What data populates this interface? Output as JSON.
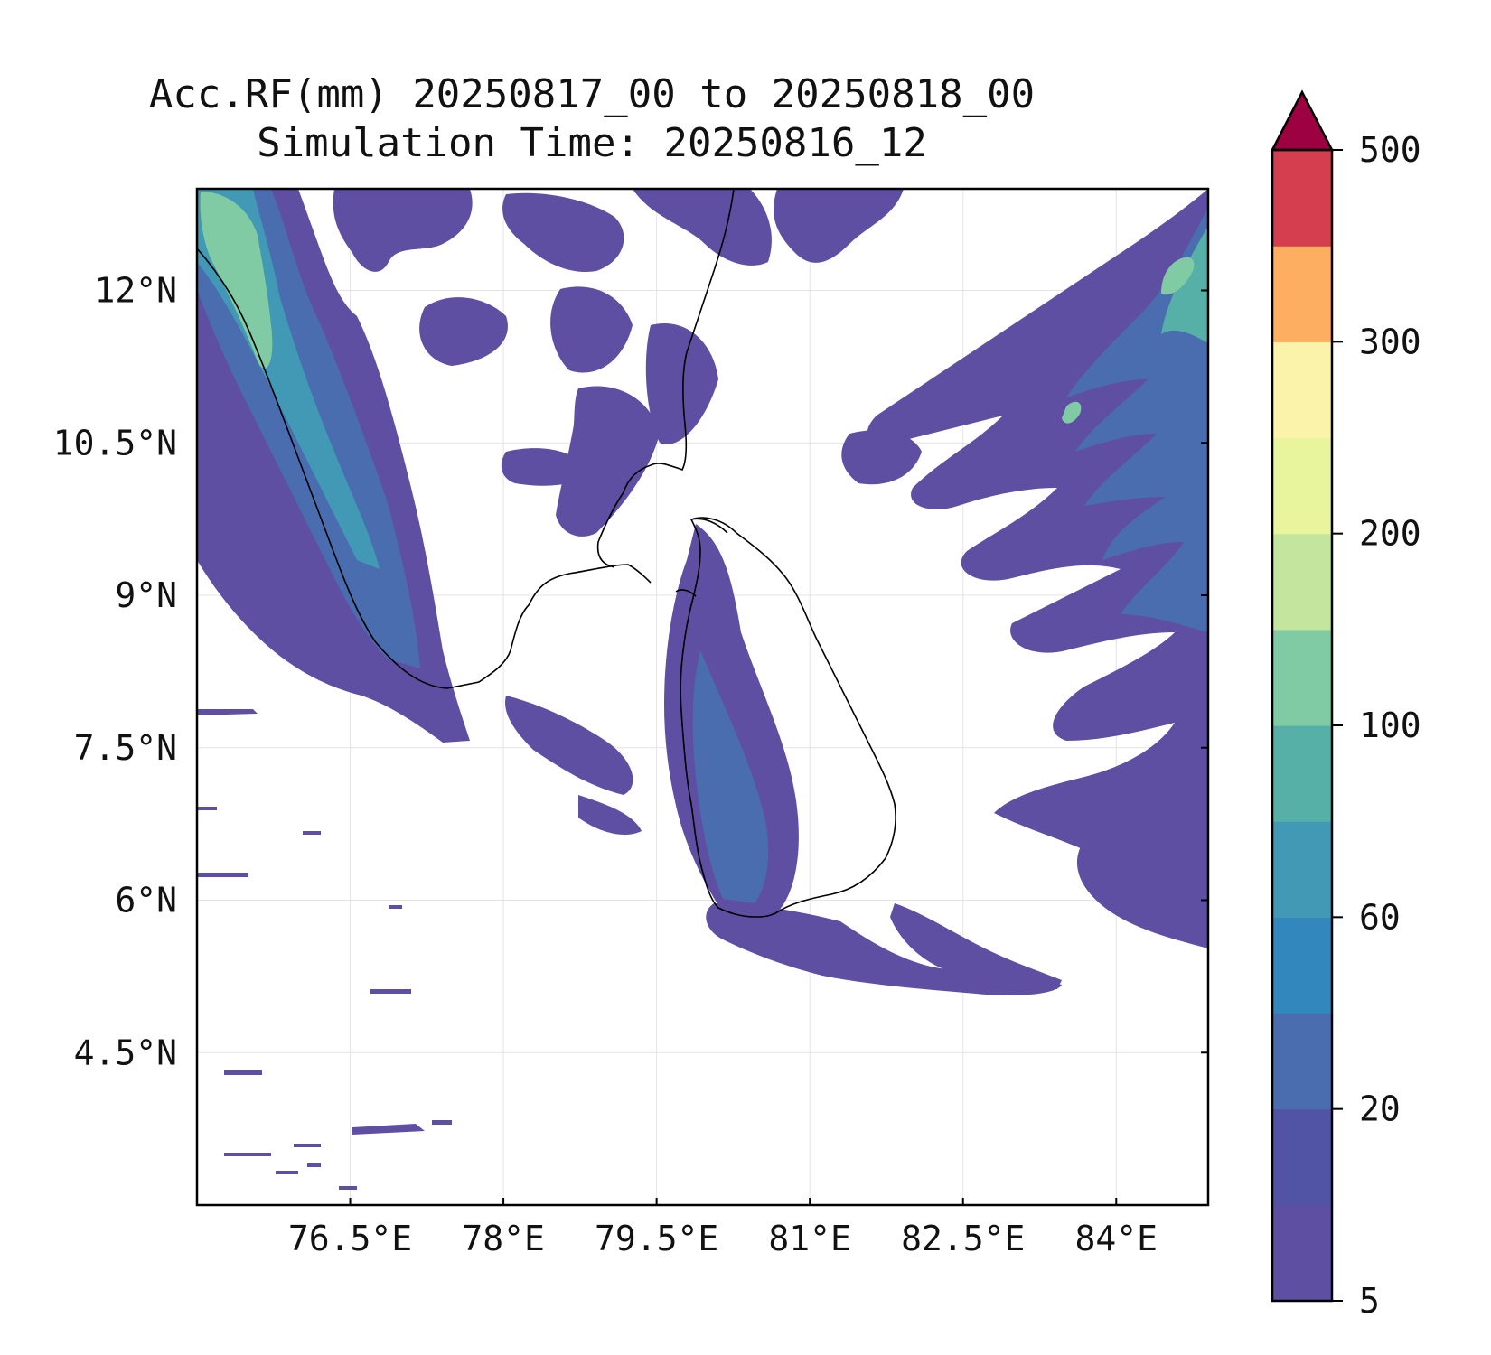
{
  "title": {
    "line1": "Acc.RF(mm) 20250817_00 to 20250818_00",
    "line2": "Simulation Time: 20250816_12"
  },
  "map": {
    "region": "Sri Lanka and southern India",
    "lon_range": [
      75.0,
      84.9
    ],
    "lat_range": [
      3.0,
      13.0
    ],
    "lon_ticks": [
      {
        "value": 76.5,
        "label": "76.5°E"
      },
      {
        "value": 78.0,
        "label": "78°E"
      },
      {
        "value": 79.5,
        "label": "79.5°E"
      },
      {
        "value": 81.0,
        "label": "81°E"
      },
      {
        "value": 82.5,
        "label": "82.5°E"
      },
      {
        "value": 84.0,
        "label": "84°E"
      }
    ],
    "lat_ticks": [
      {
        "value": 12.0,
        "label": "12°N"
      },
      {
        "value": 10.5,
        "label": "10.5°N"
      },
      {
        "value": 9.0,
        "label": "9°N"
      },
      {
        "value": 7.5,
        "label": "7.5°N"
      },
      {
        "value": 6.0,
        "label": "6°N"
      },
      {
        "value": 4.5,
        "label": "4.5°N"
      }
    ],
    "grid": true,
    "coastline_color": "#000000"
  },
  "colorbar": {
    "extend": "max",
    "ticks": [
      "5",
      "20",
      "60",
      "100",
      "200",
      "300",
      "500"
    ],
    "colors": [
      "#5e4fa2",
      "#5154a4",
      "#4a6db0",
      "#3288bd",
      "#4199b5",
      "#56b0a8",
      "#80cba4",
      "#c3e59e",
      "#e8f59c",
      "#fbf3aa",
      "#fdae61",
      "#d53e4f",
      "#9e0142"
    ]
  },
  "chart_data": {
    "type": "heatmap",
    "variable": "Accumulated rainfall (mm)",
    "levels_mm": [
      5,
      10,
      20,
      40,
      60,
      80,
      100,
      150,
      200,
      250,
      300,
      400,
      500
    ],
    "rain_areas": [
      {
        "area": "Western Ghats / Kerala coast (NW corner)",
        "approx_max_mm": 100
      },
      {
        "area": "Southwest Sri Lanka (west coast to Galle)",
        "approx_max_mm": 20
      },
      {
        "area": "Bay of Bengal (NE bands)",
        "approx_max_mm": 150
      },
      {
        "area": "South of Sri Lanka offshore band",
        "approx_max_mm": 10
      },
      {
        "area": "Palk Strait / Jaffna region",
        "approx_max_mm": 10
      }
    ]
  }
}
